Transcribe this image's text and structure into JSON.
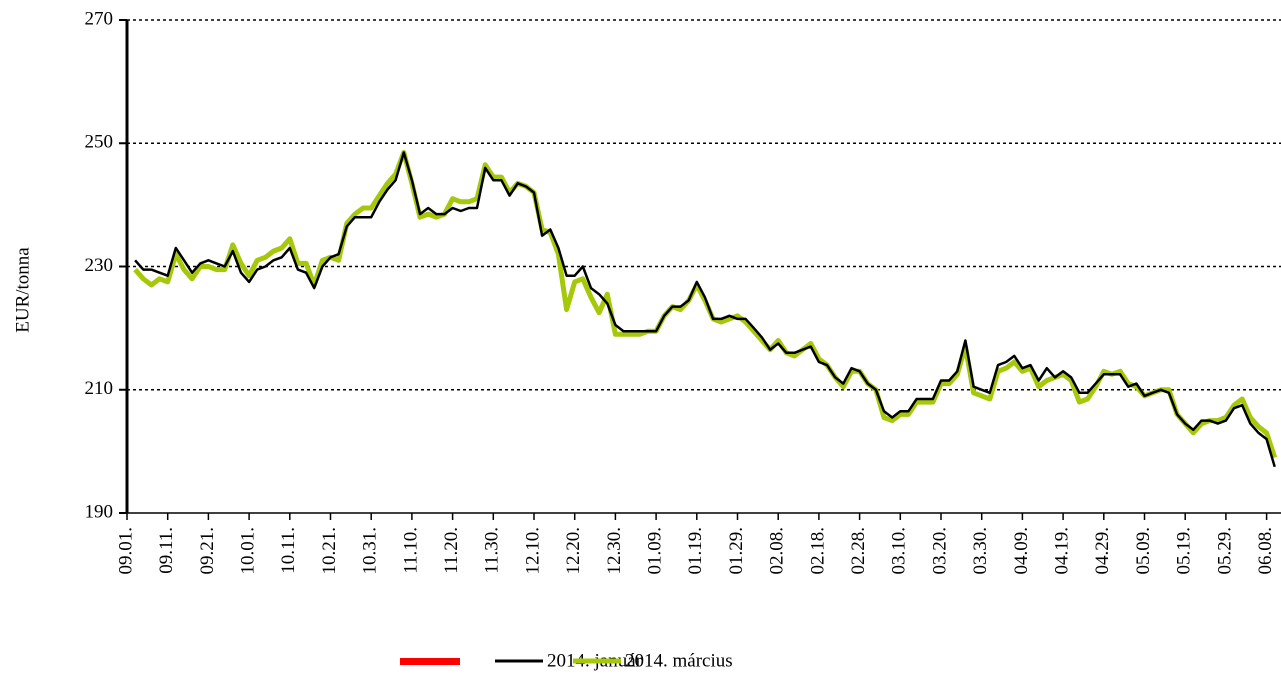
{
  "chart_data": {
    "type": "line",
    "y_label": "EUR/tonna",
    "categories": [
      "09.01.",
      null,
      null,
      null,
      null,
      "09.11.",
      null,
      null,
      null,
      null,
      "09.21.",
      null,
      null,
      null,
      null,
      "10.01.",
      null,
      null,
      null,
      null,
      "10.11.",
      null,
      null,
      null,
      null,
      "10.21.",
      null,
      null,
      null,
      null,
      "10.31.",
      null,
      null,
      null,
      null,
      "11.10.",
      null,
      null,
      null,
      null,
      "11.20.",
      null,
      null,
      null,
      null,
      "11.30.",
      null,
      null,
      null,
      null,
      "12.10.",
      null,
      null,
      null,
      null,
      "12.20.",
      null,
      null,
      null,
      null,
      "12.30.",
      null,
      null,
      null,
      null,
      "01.09.",
      null,
      null,
      null,
      null,
      "01.19.",
      null,
      null,
      null,
      null,
      "01.29.",
      null,
      null,
      null,
      null,
      "02.08.",
      null,
      null,
      null,
      null,
      "02.18.",
      null,
      null,
      null,
      null,
      "02.28.",
      null,
      null,
      null,
      null,
      "03.10.",
      null,
      null,
      null,
      null,
      "03.20.",
      null,
      null,
      null,
      null,
      "03.30.",
      null,
      null,
      null,
      null,
      "04.09.",
      null,
      null,
      null,
      null,
      "04.19.",
      null,
      null,
      null,
      null,
      "04.29.",
      null,
      null,
      null,
      null,
      "05.09.",
      null,
      null,
      null,
      null,
      "05.19.",
      null,
      null,
      null,
      null,
      "05.29.",
      null,
      null,
      null,
      null,
      "06.08.",
      null
    ],
    "series": [
      {
        "name": "2014. január",
        "color": "#000000",
        "values": [
          null,
          231,
          229.5,
          229.5,
          229,
          228.5,
          233,
          231,
          229,
          230.5,
          231,
          230.5,
          230,
          232.5,
          229,
          227.5,
          229.5,
          230,
          231,
          231.5,
          233,
          229.5,
          229,
          226.5,
          230,
          231.5,
          232,
          236.5,
          238,
          238,
          238,
          240.5,
          242.5,
          244,
          248.5,
          244,
          238.5,
          239.5,
          238.5,
          238.5,
          239.5,
          239,
          239.5,
          239.5,
          246,
          244,
          244,
          241.5,
          243.5,
          243,
          242,
          235,
          236,
          233,
          228.5,
          228.5,
          230,
          226.5,
          225.5,
          224,
          220.5,
          219.5,
          219.5,
          219.5,
          219.5,
          219.5,
          222,
          223.5,
          223.5,
          224.5,
          227.5,
          225,
          221.5,
          221.5,
          222,
          221.5,
          221.5,
          220,
          218.5,
          216.5,
          217.5,
          216,
          216,
          216.5,
          217,
          214.5,
          214,
          212,
          211,
          213.5,
          213,
          211,
          210,
          206.5,
          205.5,
          206.5,
          206.5,
          208.5,
          208.5,
          208.5,
          211.5,
          211.5,
          213,
          218,
          210.5,
          210,
          209.5,
          214,
          214.5,
          215.5,
          213.5,
          214,
          211.5,
          213.5,
          212,
          213,
          212,
          209.5,
          209.5,
          211,
          212.5,
          212.5,
          212.5,
          210.5,
          211,
          209,
          209.5,
          210,
          209.5,
          206,
          204.5,
          203.5,
          205,
          205,
          204.5,
          205,
          207,
          207.5,
          204.5,
          203,
          202,
          197.5
        ]
      },
      {
        "name": "2014. március",
        "color": "#a6c80a",
        "values": [
          null,
          229.5,
          228,
          227,
          228,
          227.5,
          232,
          229.5,
          228,
          230,
          230,
          229.5,
          229.5,
          233.5,
          230.5,
          228.5,
          231,
          231.5,
          232.5,
          233,
          234.5,
          230.5,
          230.5,
          227,
          231,
          231.5,
          231,
          237,
          238.5,
          239.5,
          239.5,
          241.5,
          243.5,
          245,
          248.5,
          243.5,
          238,
          238.5,
          238,
          238.5,
          241,
          240.5,
          240.5,
          241,
          246.5,
          244.5,
          244.5,
          242,
          243.5,
          243,
          242,
          236,
          235.5,
          232,
          223,
          227.5,
          228,
          225,
          222.5,
          225.5,
          219,
          219,
          219,
          219,
          219.5,
          219.5,
          222,
          223.5,
          223,
          224.5,
          227,
          224.5,
          221.5,
          221,
          221.5,
          222,
          221,
          219.5,
          218,
          216.5,
          218,
          216,
          215.5,
          216.5,
          217.5,
          215,
          214,
          212,
          210.5,
          213,
          213,
          211,
          210,
          205.5,
          205,
          206,
          206,
          208,
          208,
          208,
          211,
          211,
          212.5,
          217,
          209.5,
          209,
          208.5,
          213,
          213.5,
          214.5,
          213,
          213.5,
          210.5,
          211.5,
          212,
          212.5,
          211.5,
          208,
          208.5,
          210.5,
          213,
          212.5,
          213,
          211,
          210.5,
          209,
          209.5,
          210,
          210,
          206,
          204.5,
          203,
          204.5,
          205,
          205,
          205.5,
          207.5,
          208.5,
          205.5,
          204,
          203,
          199
        ]
      }
    ],
    "ylim": [
      190,
      270
    ],
    "yticks": [
      190,
      210,
      230,
      250,
      270
    ],
    "grid": true
  }
}
